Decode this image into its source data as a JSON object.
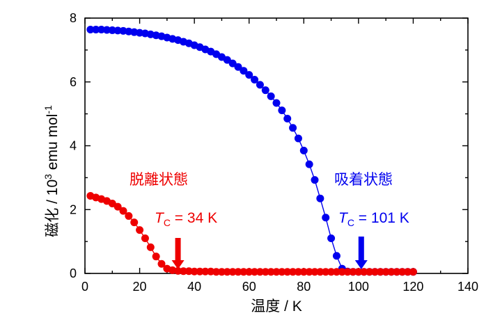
{
  "chart_data": {
    "type": "scatter",
    "title": "",
    "xlabel": "温度 / K",
    "ylabel": {
      "base": "磁化 / 10",
      "sup1": "3",
      "mid": " emu mol",
      "sup2": "-1"
    },
    "xlim": [
      0,
      140
    ],
    "ylim": [
      0,
      8
    ],
    "xticks": [
      0,
      20,
      40,
      60,
      80,
      100,
      120,
      140
    ],
    "yticks": [
      0,
      2,
      4,
      6,
      8
    ],
    "grid": false,
    "series": [
      {
        "name": "吸着状態",
        "color": "#0000ee",
        "tc_label": "= 101 K",
        "tc": 101,
        "x": [
          2,
          4,
          6,
          8,
          10,
          12,
          14,
          16,
          18,
          20,
          22,
          24,
          26,
          28,
          30,
          32,
          34,
          36,
          38,
          40,
          42,
          44,
          46,
          48,
          50,
          52,
          54,
          56,
          58,
          60,
          62,
          64,
          66,
          68,
          70,
          72,
          74,
          76,
          78,
          80,
          82,
          84,
          86,
          88,
          90,
          92,
          94,
          96,
          98,
          100,
          102,
          104,
          106,
          108,
          110,
          112,
          114,
          116,
          118,
          120
        ],
        "y": [
          7.64,
          7.64,
          7.64,
          7.63,
          7.62,
          7.61,
          7.6,
          7.58,
          7.56,
          7.54,
          7.52,
          7.49,
          7.46,
          7.43,
          7.39,
          7.35,
          7.31,
          7.26,
          7.21,
          7.15,
          7.09,
          7.02,
          6.95,
          6.87,
          6.78,
          6.69,
          6.58,
          6.47,
          6.35,
          6.22,
          6.07,
          5.91,
          5.74,
          5.55,
          5.34,
          5.11,
          4.85,
          4.56,
          4.23,
          3.85,
          3.42,
          2.93,
          2.35,
          1.75,
          1.1,
          0.55,
          0.15,
          0.06,
          0.05,
          0.05,
          0.05,
          0.05,
          0.05,
          0.05,
          0.05,
          0.05,
          0.05,
          0.05,
          0.05,
          0.05
        ]
      },
      {
        "name": "脱離状態",
        "color": "#ee0000",
        "tc_label": "= 34 K",
        "tc": 34,
        "x": [
          2,
          4,
          6,
          8,
          10,
          12,
          14,
          16,
          18,
          20,
          22,
          24,
          26,
          28,
          30,
          32,
          34,
          36,
          38,
          40,
          42,
          44,
          46,
          48,
          50,
          52,
          54,
          56,
          58,
          60,
          62,
          64,
          66,
          68,
          70,
          72,
          74,
          76,
          78,
          80,
          82,
          84,
          86,
          88,
          90,
          92,
          94,
          96,
          98,
          100,
          102,
          104,
          106,
          108,
          110,
          112,
          114,
          116,
          118,
          120
        ],
        "y": [
          2.43,
          2.38,
          2.33,
          2.27,
          2.19,
          2.09,
          1.96,
          1.8,
          1.6,
          1.36,
          1.1,
          0.82,
          0.53,
          0.3,
          0.15,
          0.1,
          0.08,
          0.07,
          0.07,
          0.06,
          0.06,
          0.06,
          0.06,
          0.05,
          0.05,
          0.05,
          0.05,
          0.05,
          0.05,
          0.05,
          0.05,
          0.05,
          0.05,
          0.05,
          0.05,
          0.05,
          0.05,
          0.05,
          0.05,
          0.05,
          0.05,
          0.05,
          0.05,
          0.05,
          0.05,
          0.05,
          0.05,
          0.05,
          0.05,
          0.05,
          0.05,
          0.05,
          0.05,
          0.05,
          0.05,
          0.05,
          0.05,
          0.05,
          0.05,
          0.05
        ]
      }
    ],
    "tc_symbol": {
      "main": "T",
      "sub": "C"
    }
  }
}
